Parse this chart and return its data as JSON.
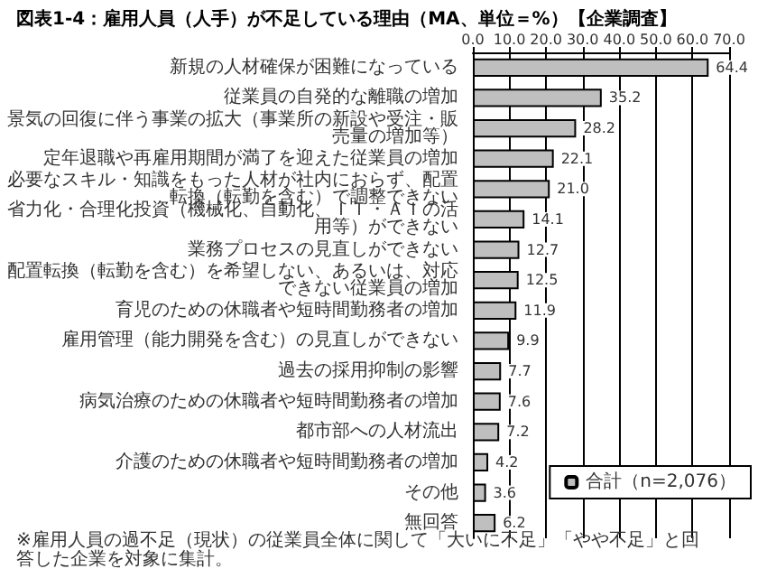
{
  "chart_data": {
    "type": "bar",
    "orientation": "horizontal",
    "title": "図表1-4：雇用人員（人手）が不足している理由（MA、単位＝%）【企業調査】",
    "categories": [
      "新規の人材確保が困難になっている",
      "従業員の自発的な離職の増加",
      "景気の回復に伴う事業の拡大（事業所の新設や受注・販売量の増加等）",
      "定年退職や再雇用期間が満了を迎えた従業員の増加",
      "必要なスキル・知識をもった人材が社内におらず、配置転換（転勤を含む）で調整できない",
      "省力化・合理化投資（機械化、自動化、ＩＴ・ＡＩの活用等）ができない",
      "業務プロセスの見直しができない",
      "配置転換（転勤を含む）を希望しない、あるいは、対応できない従業員の増加",
      "育児のための休職者や短時間勤務者の増加",
      "雇用管理（能力開発を含む）の見直しができない",
      "過去の採用抑制の影響",
      "病気治療のための休職者や短時間勤務者の増加",
      "都市部への人材流出",
      "介護のための休職者や短時間勤務者の増加",
      "その他",
      "無回答"
    ],
    "series": [
      {
        "name": "合計（n=2,076）",
        "color": "#bfbfbf",
        "values": [
          64.4,
          35.2,
          28.2,
          22.1,
          21.0,
          14.1,
          12.7,
          12.5,
          11.9,
          9.9,
          7.7,
          7.6,
          7.2,
          4.2,
          3.6,
          6.2
        ],
        "value_labels": [
          "64.4",
          "35.2",
          "28.2",
          "22.1",
          "21.0",
          "14.1",
          "12.7",
          "12.5",
          "11.9",
          "9.9",
          "7.7",
          "7.6",
          "7.2",
          "4.2",
          "3.6",
          "6.2"
        ]
      }
    ],
    "xlim": [
      0,
      70
    ],
    "xticks": [
      {
        "value": 0,
        "label": "0.0"
      },
      {
        "value": 10,
        "label": "10.0"
      },
      {
        "value": 20,
        "label": "20.0"
      },
      {
        "value": 30,
        "label": "30.0"
      },
      {
        "value": 40,
        "label": "40.0"
      },
      {
        "value": 50,
        "label": "50.0"
      },
      {
        "value": 60,
        "label": "60.0"
      },
      {
        "value": 70,
        "label": "70.0"
      }
    ],
    "grid": "x",
    "legend": "bottom right",
    "annotations": [
      "※雇用人員の過不足（現状）の従業員全体に関して「大いに不足」「やや不足」と回答した企業を対象に集計。"
    ]
  }
}
